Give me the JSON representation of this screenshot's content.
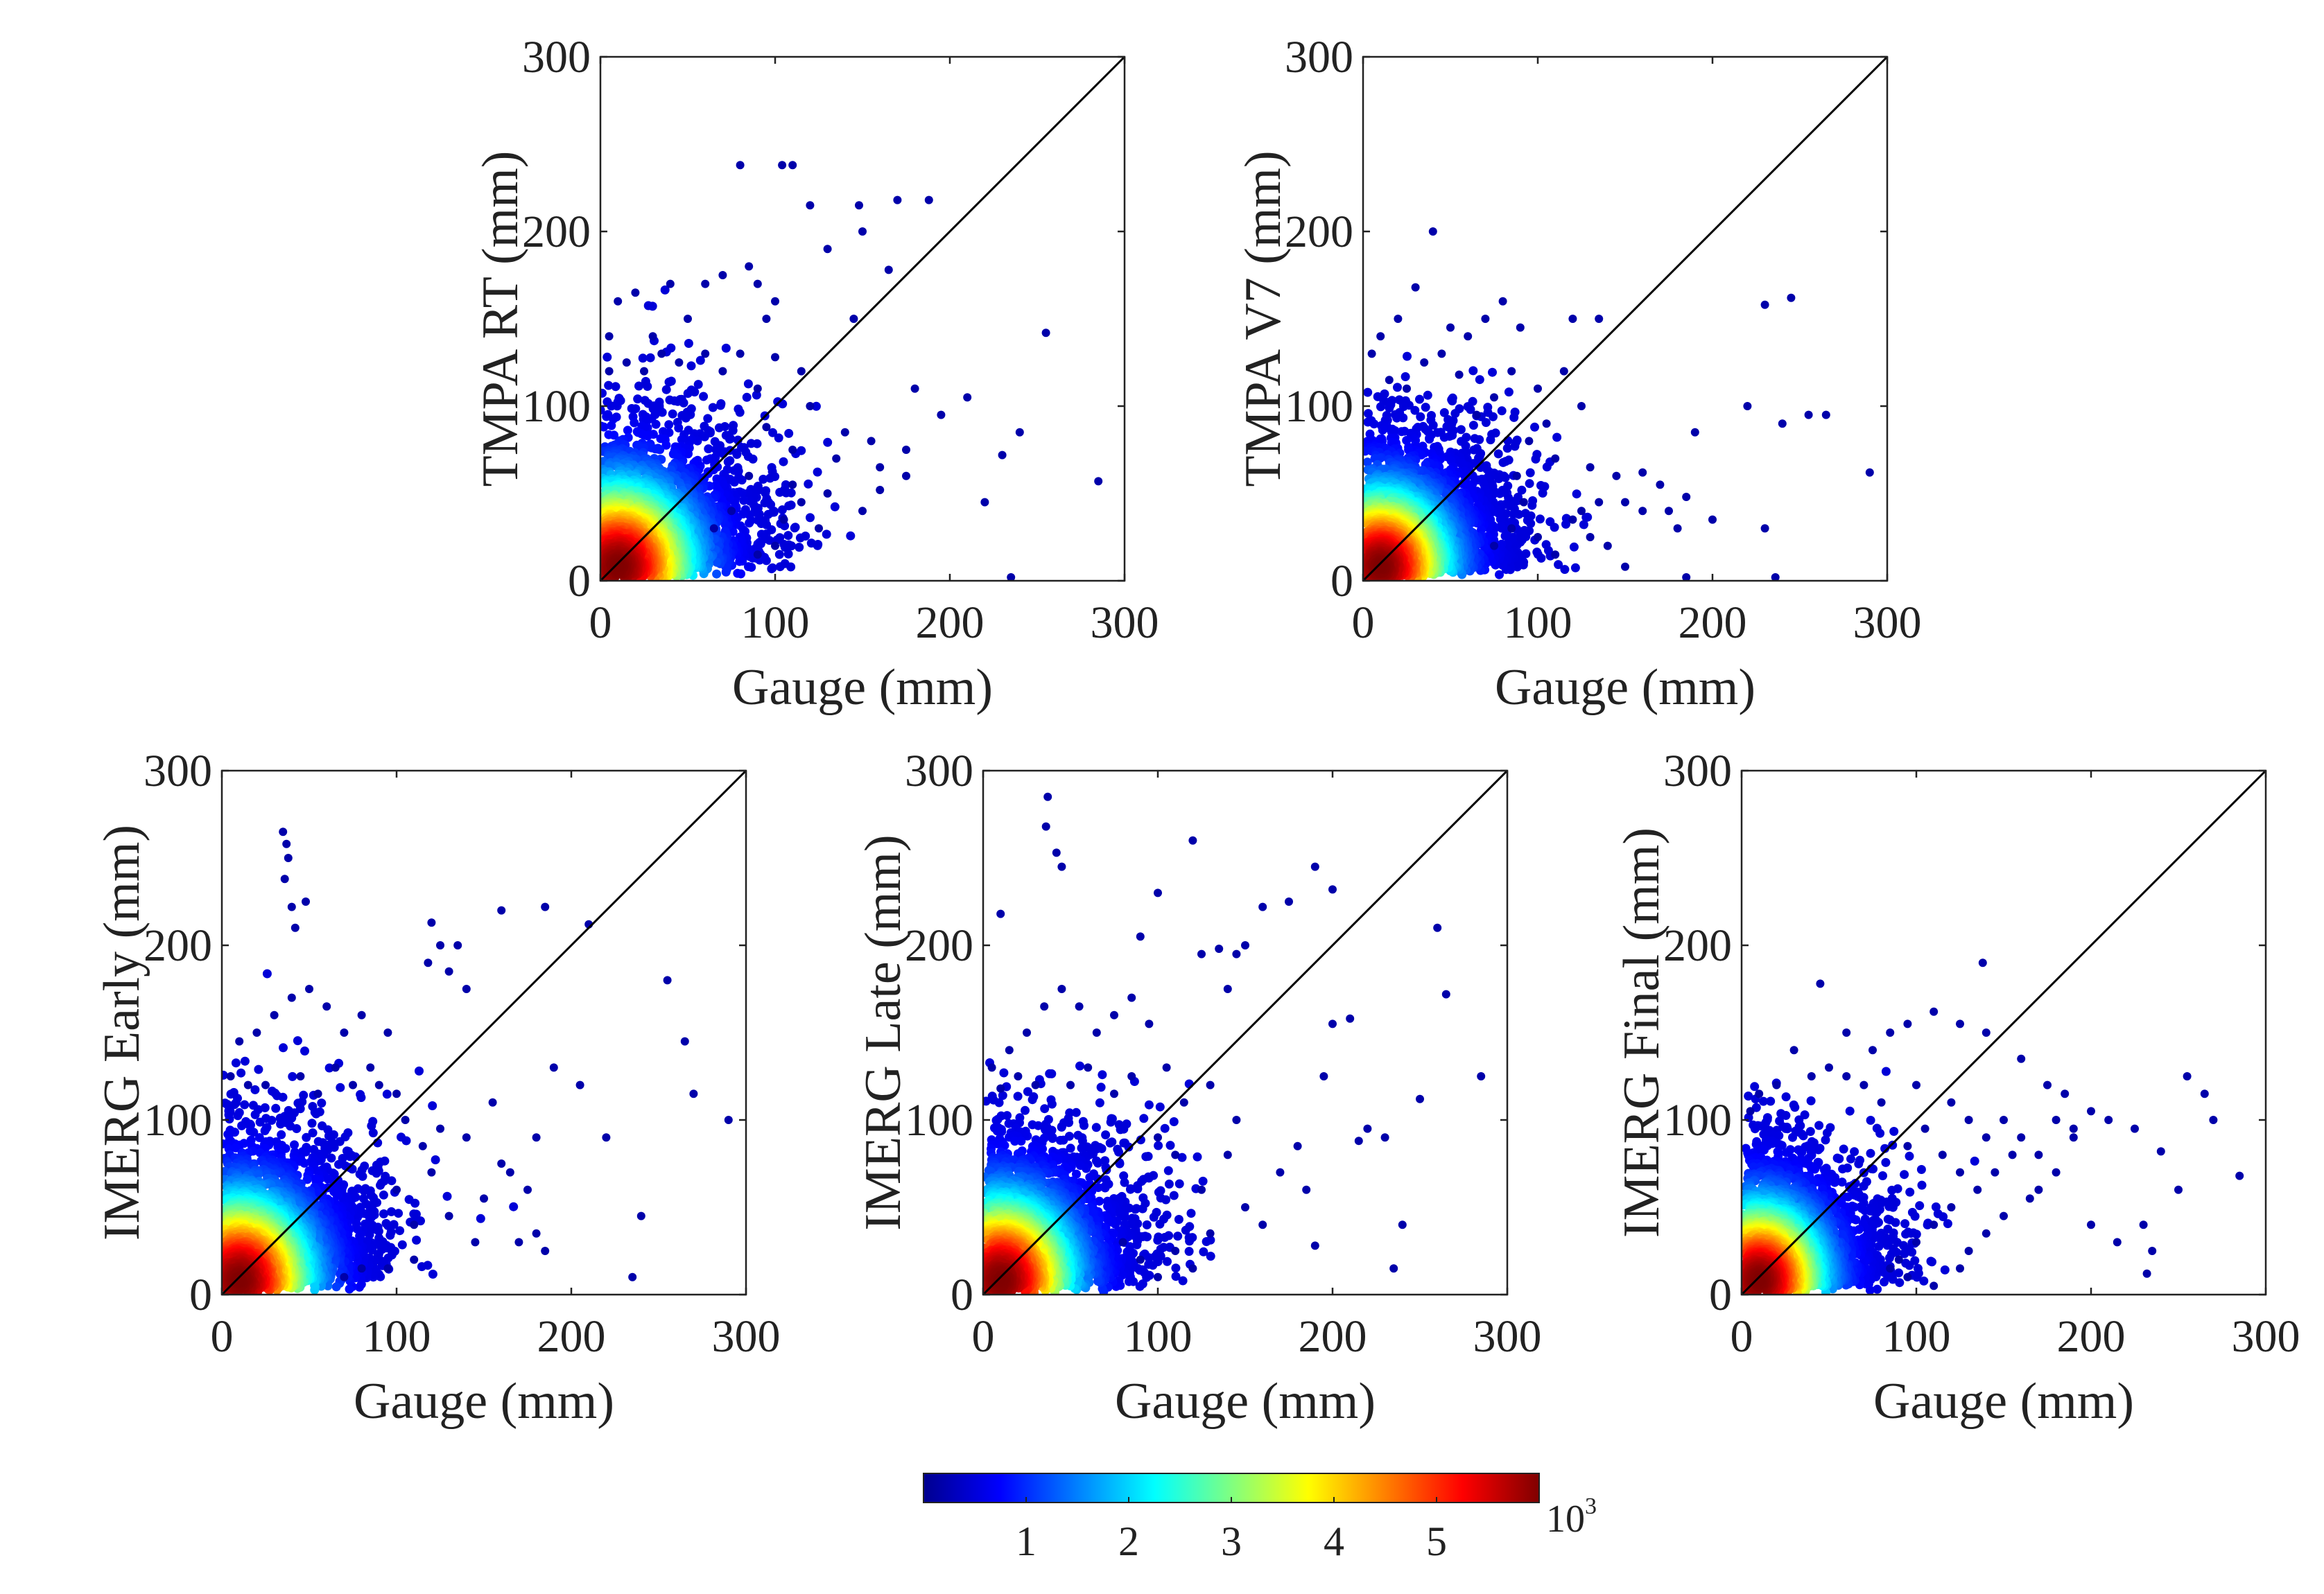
{
  "chart_data": [
    {
      "type": "scatter",
      "panel": "TMPA RT",
      "xlabel": "Gauge (mm)",
      "ylabel": "TMPA RT (mm)",
      "xlim": [
        0,
        300
      ],
      "ylim": [
        0,
        300
      ],
      "xticks": [
        "0",
        "100",
        "200",
        "300"
      ],
      "yticks": [
        "0",
        "100",
        "200",
        "300"
      ],
      "reference_line": "1:1",
      "color_by": "point density",
      "points": [
        [
          80,
          238
        ],
        [
          104,
          238
        ],
        [
          110,
          238
        ],
        [
          120,
          215
        ],
        [
          148,
          215
        ],
        [
          170,
          218
        ],
        [
          188,
          218
        ],
        [
          130,
          190
        ],
        [
          165,
          178
        ],
        [
          150,
          200
        ],
        [
          255,
          142
        ],
        [
          285,
          57
        ],
        [
          235,
          2
        ],
        [
          210,
          105
        ],
        [
          195,
          95
        ],
        [
          175,
          75
        ],
        [
          160,
          65
        ],
        [
          230,
          72
        ],
        [
          240,
          85
        ],
        [
          220,
          45
        ],
        [
          140,
          85
        ],
        [
          135,
          70
        ],
        [
          155,
          80
        ],
        [
          160,
          52
        ],
        [
          150,
          40
        ],
        [
          125,
          30
        ],
        [
          110,
          55
        ],
        [
          100,
          160
        ],
        [
          90,
          170
        ],
        [
          95,
          150
        ],
        [
          70,
          175
        ],
        [
          85,
          180
        ],
        [
          60,
          170
        ],
        [
          40,
          170
        ],
        [
          20,
          165
        ],
        [
          10,
          160
        ],
        [
          50,
          150
        ],
        [
          30,
          140
        ],
        [
          5,
          140
        ],
        [
          180,
          110
        ],
        [
          175,
          60
        ],
        [
          145,
          150
        ],
        [
          115,
          120
        ],
        [
          120,
          100
        ],
        [
          100,
          128
        ],
        [
          90,
          110
        ],
        [
          80,
          130
        ],
        [
          70,
          120
        ],
        [
          60,
          130
        ],
        [
          45,
          125
        ],
        [
          35,
          130
        ],
        [
          25,
          120
        ],
        [
          15,
          125
        ],
        [
          5,
          120
        ],
        [
          110,
          75
        ],
        [
          115,
          45
        ],
        [
          130,
          50
        ],
        [
          105,
          35
        ],
        [
          100,
          20
        ],
        [
          90,
          15
        ],
        [
          95,
          88
        ],
        [
          85,
          60
        ],
        [
          75,
          40
        ],
        [
          65,
          30
        ]
      ],
      "density_cluster": {
        "center": [
          15,
          15
        ],
        "x_extent": 100,
        "y_extent": 120
      }
    },
    {
      "type": "scatter",
      "panel": "TMPA V7",
      "xlabel": "Gauge (mm)",
      "ylabel": "TMPA V7 (mm)",
      "xlim": [
        0,
        300
      ],
      "ylim": [
        0,
        300
      ],
      "xticks": [
        "0",
        "100",
        "200",
        "300"
      ],
      "yticks": [
        "0",
        "100",
        "200",
        "300"
      ],
      "reference_line": "1:1",
      "color_by": "point density",
      "points": [
        [
          40,
          200
        ],
        [
          30,
          168
        ],
        [
          245,
          162
        ],
        [
          230,
          158
        ],
        [
          135,
          150
        ],
        [
          120,
          150
        ],
        [
          125,
          100
        ],
        [
          220,
          100
        ],
        [
          255,
          95
        ],
        [
          265,
          95
        ],
        [
          240,
          90
        ],
        [
          290,
          62
        ],
        [
          200,
          35
        ],
        [
          180,
          30
        ],
        [
          160,
          40
        ],
        [
          170,
          55
        ],
        [
          185,
          48
        ],
        [
          190,
          85
        ],
        [
          230,
          30
        ],
        [
          236,
          2
        ],
        [
          185,
          2
        ],
        [
          150,
          8
        ],
        [
          140,
          20
        ],
        [
          110,
          15
        ],
        [
          100,
          25
        ],
        [
          95,
          80
        ],
        [
          105,
          90
        ],
        [
          110,
          70
        ],
        [
          130,
          65
        ],
        [
          145,
          60
        ],
        [
          150,
          45
        ],
        [
          160,
          62
        ],
        [
          175,
          40
        ],
        [
          90,
          145
        ],
        [
          80,
          160
        ],
        [
          70,
          150
        ],
        [
          60,
          140
        ],
        [
          50,
          145
        ],
        [
          20,
          150
        ],
        [
          10,
          140
        ],
        [
          5,
          130
        ],
        [
          45,
          130
        ],
        [
          85,
          120
        ],
        [
          100,
          110
        ],
        [
          115,
          120
        ],
        [
          75,
          105
        ],
        [
          65,
          95
        ],
        [
          55,
          118
        ],
        [
          35,
          125
        ],
        [
          25,
          110
        ],
        [
          15,
          115
        ],
        [
          120,
          35
        ],
        [
          130,
          25
        ],
        [
          135,
          45
        ],
        [
          125,
          40
        ],
        [
          85,
          30
        ],
        [
          75,
          20
        ],
        [
          88,
          60
        ],
        [
          92,
          45
        ]
      ],
      "density_cluster": {
        "center": [
          15,
          15
        ],
        "x_extent": 90,
        "y_extent": 110
      }
    },
    {
      "type": "scatter",
      "panel": "IMERG Early",
      "xlabel": "Gauge (mm)",
      "ylabel": "IMERG Early (mm)",
      "xlim": [
        0,
        300
      ],
      "ylim": [
        0,
        300
      ],
      "xticks": [
        "0",
        "100",
        "200",
        "300"
      ],
      "yticks": [
        "0",
        "100",
        "200",
        "300"
      ],
      "reference_line": "1:1",
      "color_by": "point density",
      "points": [
        [
          35,
          265
        ],
        [
          37,
          258
        ],
        [
          38,
          250
        ],
        [
          36,
          238
        ],
        [
          40,
          222
        ],
        [
          42,
          210
        ],
        [
          48,
          225
        ],
        [
          120,
          213
        ],
        [
          125,
          200
        ],
        [
          135,
          200
        ],
        [
          160,
          220
        ],
        [
          185,
          222
        ],
        [
          210,
          212
        ],
        [
          118,
          190
        ],
        [
          130,
          185
        ],
        [
          140,
          175
        ],
        [
          255,
          180
        ],
        [
          265,
          145
        ],
        [
          290,
          100
        ],
        [
          270,
          115
        ],
        [
          240,
          45
        ],
        [
          235,
          10
        ],
        [
          220,
          90
        ],
        [
          205,
          120
        ],
        [
          190,
          130
        ],
        [
          180,
          90
        ],
        [
          175,
          60
        ],
        [
          160,
          75
        ],
        [
          150,
          55
        ],
        [
          140,
          90
        ],
        [
          145,
          30
        ],
        [
          130,
          45
        ],
        [
          120,
          70
        ],
        [
          110,
          40
        ],
        [
          100,
          60
        ],
        [
          90,
          120
        ],
        [
          95,
          150
        ],
        [
          80,
          160
        ],
        [
          70,
          150
        ],
        [
          60,
          165
        ],
        [
          50,
          175
        ],
        [
          40,
          170
        ],
        [
          30,
          160
        ],
        [
          20,
          150
        ],
        [
          10,
          145
        ],
        [
          5,
          125
        ],
        [
          85,
          130
        ],
        [
          100,
          115
        ],
        [
          75,
          120
        ],
        [
          65,
          130
        ],
        [
          55,
          115
        ],
        [
          45,
          125
        ],
        [
          25,
          120
        ],
        [
          15,
          120
        ],
        [
          105,
          100
        ],
        [
          115,
          85
        ],
        [
          125,
          95
        ],
        [
          185,
          25
        ],
        [
          180,
          35
        ],
        [
          170,
          30
        ],
        [
          165,
          70
        ],
        [
          155,
          110
        ],
        [
          110,
          20
        ],
        [
          95,
          15
        ],
        [
          80,
          15
        ],
        [
          70,
          10
        ]
      ],
      "density_cluster": {
        "center": [
          20,
          20
        ],
        "x_extent": 95,
        "y_extent": 120
      }
    },
    {
      "type": "scatter",
      "panel": "IMERG Late",
      "xlabel": "Gauge (mm)",
      "ylabel": "IMERG Late (mm)",
      "xlim": [
        0,
        300
      ],
      "ylim": [
        0,
        300
      ],
      "xticks": [
        "0",
        "100",
        "200",
        "300"
      ],
      "yticks": [
        "0",
        "100",
        "200",
        "300"
      ],
      "reference_line": "1:1",
      "color_by": "point density",
      "points": [
        [
          37,
          285
        ],
        [
          36,
          268
        ],
        [
          42,
          253
        ],
        [
          45,
          245
        ],
        [
          120,
          260
        ],
        [
          90,
          205
        ],
        [
          100,
          230
        ],
        [
          175,
          225
        ],
        [
          160,
          222
        ],
        [
          190,
          245
        ],
        [
          200,
          232
        ],
        [
          10,
          218
        ],
        [
          150,
          200
        ],
        [
          125,
          195
        ],
        [
          135,
          198
        ],
        [
          145,
          195
        ],
        [
          140,
          175
        ],
        [
          260,
          210
        ],
        [
          265,
          172
        ],
        [
          285,
          125
        ],
        [
          250,
          112
        ],
        [
          240,
          40
        ],
        [
          235,
          15
        ],
        [
          210,
          158
        ],
        [
          200,
          155
        ],
        [
          195,
          125
        ],
        [
          220,
          95
        ],
        [
          230,
          90
        ],
        [
          215,
          88
        ],
        [
          180,
          85
        ],
        [
          170,
          70
        ],
        [
          185,
          60
        ],
        [
          190,
          28
        ],
        [
          160,
          40
        ],
        [
          150,
          50
        ],
        [
          130,
          35
        ],
        [
          125,
          60
        ],
        [
          110,
          80
        ],
        [
          100,
          90
        ],
        [
          115,
          110
        ],
        [
          105,
          130
        ],
        [
          95,
          155
        ],
        [
          85,
          170
        ],
        [
          75,
          160
        ],
        [
          65,
          150
        ],
        [
          55,
          165
        ],
        [
          45,
          175
        ],
        [
          35,
          165
        ],
        [
          25,
          150
        ],
        [
          15,
          140
        ],
        [
          5,
          130
        ],
        [
          75,
          115
        ],
        [
          85,
          125
        ],
        [
          60,
          130
        ],
        [
          50,
          120
        ],
        [
          30,
          120
        ],
        [
          20,
          125
        ],
        [
          10,
          118
        ],
        [
          140,
          80
        ],
        [
          145,
          100
        ],
        [
          130,
          120
        ],
        [
          120,
          15
        ],
        [
          110,
          25
        ],
        [
          100,
          10
        ],
        [
          90,
          20
        ],
        [
          80,
          30
        ]
      ],
      "density_cluster": {
        "center": [
          15,
          15
        ],
        "x_extent": 95,
        "y_extent": 120
      }
    },
    {
      "type": "scatter",
      "panel": "IMERG Final",
      "xlabel": "Gauge (mm)",
      "ylabel": "IMERG Final (mm)",
      "xlim": [
        0,
        300
      ],
      "ylim": [
        0,
        300
      ],
      "xticks": [
        "0",
        "100",
        "200",
        "300"
      ],
      "yticks": [
        "0",
        "100",
        "200",
        "300"
      ],
      "reference_line": "1:1",
      "color_by": "point density",
      "points": [
        [
          138,
          190
        ],
        [
          45,
          178
        ],
        [
          85,
          150
        ],
        [
          75,
          140
        ],
        [
          95,
          155
        ],
        [
          60,
          150
        ],
        [
          30,
          140
        ],
        [
          110,
          162
        ],
        [
          125,
          155
        ],
        [
          140,
          150
        ],
        [
          160,
          135
        ],
        [
          175,
          120
        ],
        [
          185,
          115
        ],
        [
          200,
          105
        ],
        [
          210,
          100
        ],
        [
          225,
          95
        ],
        [
          240,
          82
        ],
        [
          255,
          125
        ],
        [
          265,
          115
        ],
        [
          285,
          68
        ],
        [
          270,
          100
        ],
        [
          250,
          60
        ],
        [
          230,
          40
        ],
        [
          232,
          12
        ],
        [
          235,
          25
        ],
        [
          215,
          30
        ],
        [
          200,
          40
        ],
        [
          190,
          90
        ],
        [
          180,
          70
        ],
        [
          170,
          60
        ],
        [
          165,
          55
        ],
        [
          150,
          45
        ],
        [
          140,
          35
        ],
        [
          130,
          25
        ],
        [
          120,
          50
        ],
        [
          110,
          40
        ],
        [
          100,
          30
        ],
        [
          90,
          20
        ],
        [
          95,
          85
        ],
        [
          105,
          95
        ],
        [
          115,
          80
        ],
        [
          125,
          70
        ],
        [
          135,
          60
        ],
        [
          145,
          70
        ],
        [
          155,
          80
        ],
        [
          70,
          120
        ],
        [
          60,
          125
        ],
        [
          50,
          130
        ],
        [
          40,
          125
        ],
        [
          20,
          120
        ],
        [
          10,
          115
        ],
        [
          5,
          105
        ],
        [
          80,
          110
        ],
        [
          100,
          120
        ],
        [
          120,
          110
        ],
        [
          130,
          100
        ],
        [
          140,
          90
        ],
        [
          150,
          100
        ],
        [
          160,
          90
        ],
        [
          170,
          80
        ],
        [
          180,
          100
        ],
        [
          190,
          95
        ],
        [
          125,
          15
        ],
        [
          110,
          5
        ],
        [
          95,
          10
        ],
        [
          85,
          15
        ]
      ],
      "density_cluster": {
        "center": [
          15,
          15
        ],
        "x_extent": 85,
        "y_extent": 110
      }
    }
  ],
  "colorbar": {
    "colormap": "jet",
    "ticks": [
      "1",
      "2",
      "3",
      "4",
      "5"
    ],
    "exponent_base": "10",
    "exponent_power": "3",
    "colors": [
      "#00008f",
      "#0000ff",
      "#0080ff",
      "#00ffff",
      "#80ff80",
      "#ffff00",
      "#ff8000",
      "#ff0000",
      "#800000"
    ]
  }
}
